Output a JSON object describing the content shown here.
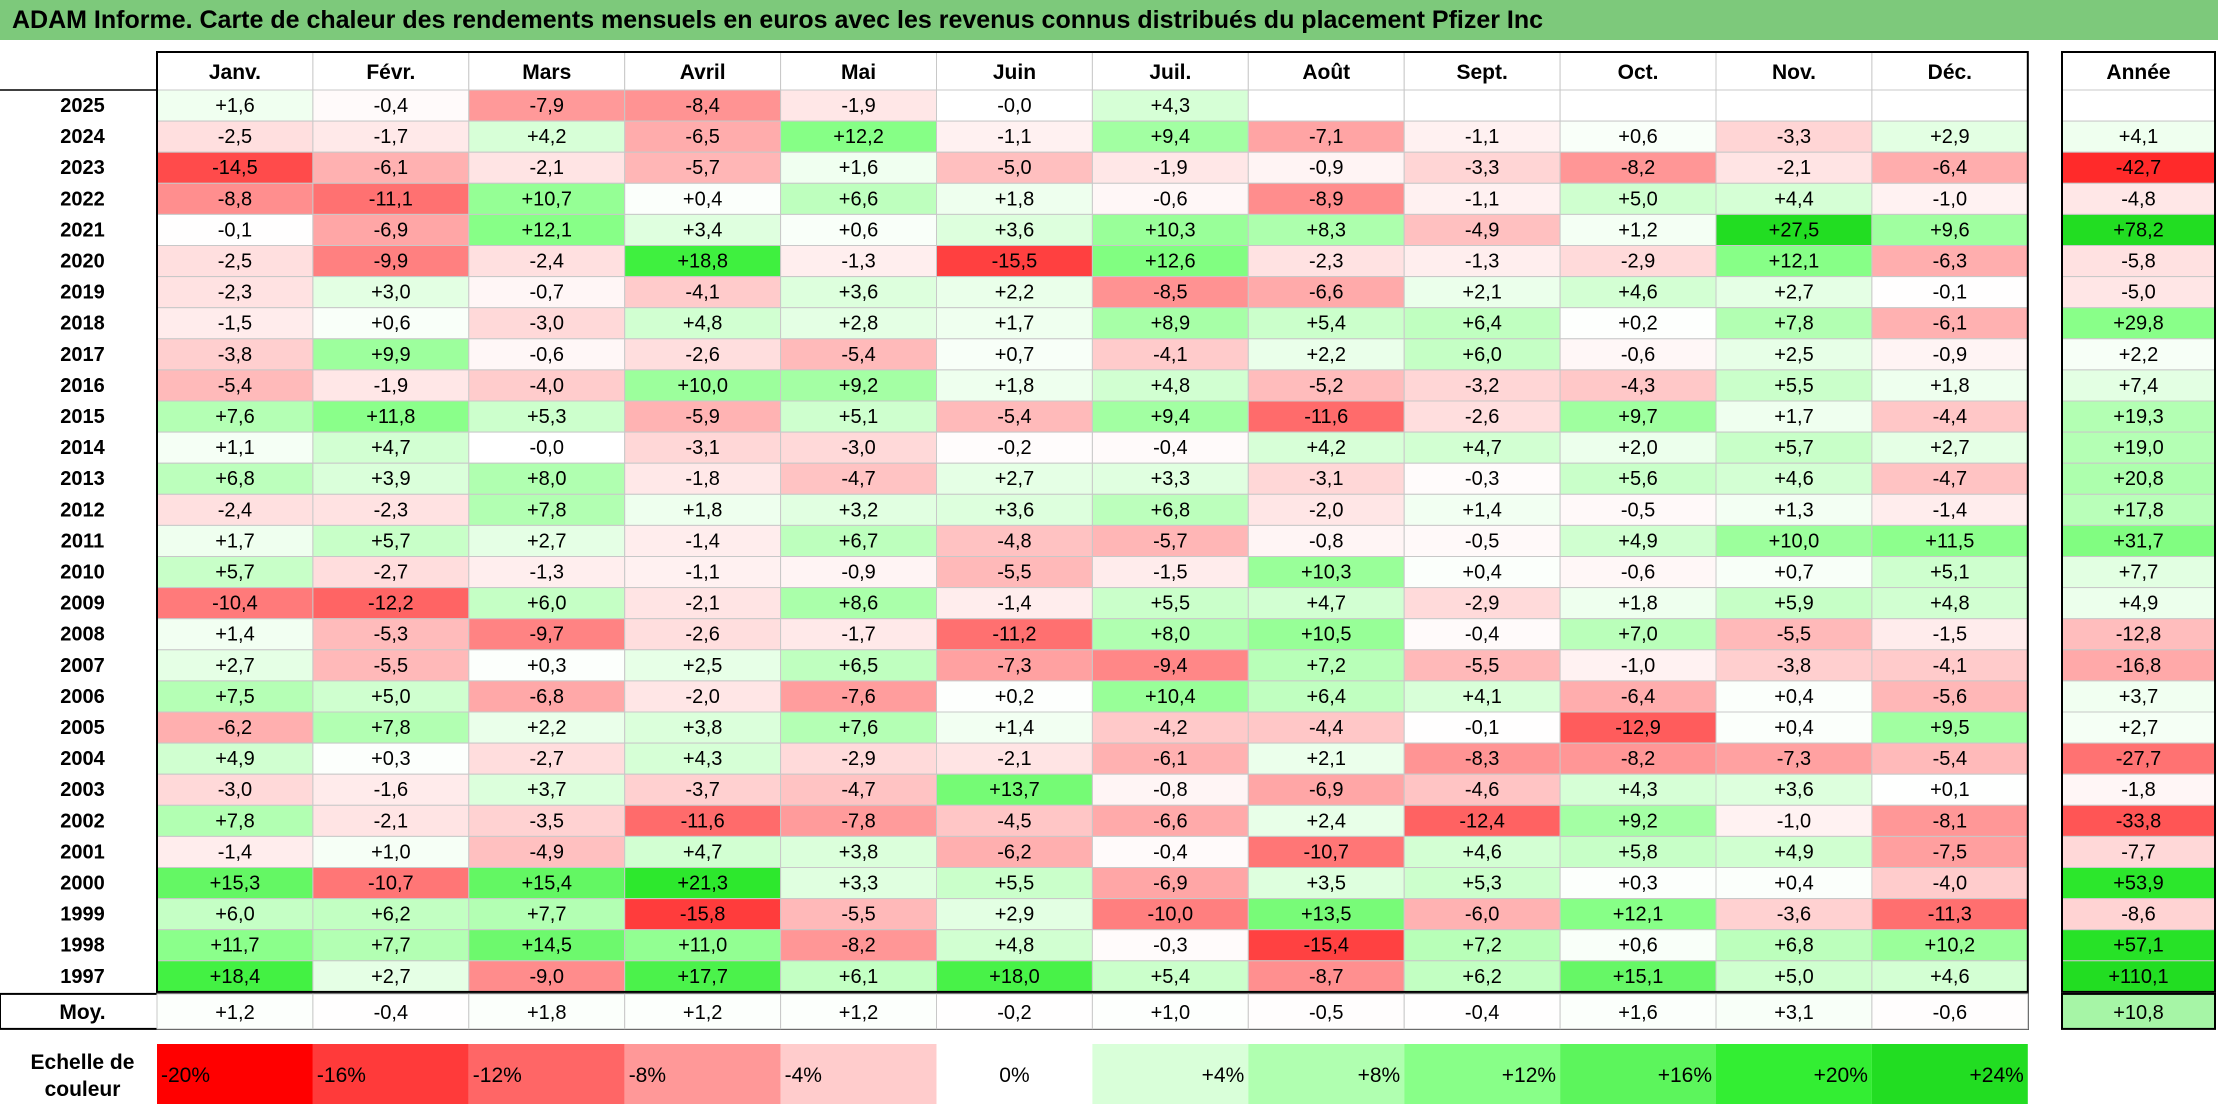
{
  "title": "ADAM Informe. Carte de chaleur des rendements mensuels en euros avec les revenus connus distribués du placement Pfizer Inc",
  "chart_data": {
    "type": "heatmap",
    "title": "ADAM Informe. Carte de chaleur des rendements mensuels en euros avec les revenus connus distribués du placement Pfizer Inc",
    "months": [
      "Janv.",
      "Févr.",
      "Mars",
      "Avril",
      "Mai",
      "Juin",
      "Juil.",
      "Août",
      "Sept.",
      "Oct.",
      "Nov.",
      "Déc."
    ],
    "year_header": "Année",
    "average_label": "Moy.",
    "rows": [
      {
        "year": "2025",
        "values": [
          1.6,
          -0.4,
          -7.9,
          -8.4,
          -1.9,
          -0.0,
          4.3,
          null,
          null,
          null,
          null,
          null
        ],
        "annual": null
      },
      {
        "year": "2024",
        "values": [
          -2.5,
          -1.7,
          4.2,
          -6.5,
          12.2,
          -1.1,
          9.4,
          -7.1,
          -1.1,
          0.6,
          -3.3,
          2.9
        ],
        "annual": 4.1
      },
      {
        "year": "2023",
        "values": [
          -14.5,
          -6.1,
          -2.1,
          -5.7,
          1.6,
          -5.0,
          -1.9,
          -0.9,
          -3.3,
          -8.2,
          -2.1,
          -6.4
        ],
        "annual": -42.7
      },
      {
        "year": "2022",
        "values": [
          -8.8,
          -11.1,
          10.7,
          0.4,
          6.6,
          1.8,
          -0.6,
          -8.9,
          -1.1,
          5.0,
          4.4,
          -1.0
        ],
        "annual": -4.8
      },
      {
        "year": "2021",
        "values": [
          -0.1,
          -6.9,
          12.1,
          3.4,
          0.6,
          3.6,
          10.3,
          8.3,
          -4.9,
          1.2,
          27.5,
          9.6
        ],
        "annual": 78.2
      },
      {
        "year": "2020",
        "values": [
          -2.5,
          -9.9,
          -2.4,
          18.8,
          -1.3,
          -15.5,
          12.6,
          -2.3,
          -1.3,
          -2.9,
          12.1,
          -6.3
        ],
        "annual": -5.8
      },
      {
        "year": "2019",
        "values": [
          -2.3,
          3.0,
          -0.7,
          -4.1,
          3.6,
          2.2,
          -8.5,
          -6.6,
          2.1,
          4.6,
          2.7,
          -0.1
        ],
        "annual": -5.0
      },
      {
        "year": "2018",
        "values": [
          -1.5,
          0.6,
          -3.0,
          4.8,
          2.8,
          1.7,
          8.9,
          5.4,
          6.4,
          0.2,
          7.8,
          -6.1
        ],
        "annual": 29.8
      },
      {
        "year": "2017",
        "values": [
          -3.8,
          9.9,
          -0.6,
          -2.6,
          -5.4,
          0.7,
          -4.1,
          2.2,
          6.0,
          -0.6,
          2.5,
          -0.9
        ],
        "annual": 2.2
      },
      {
        "year": "2016",
        "values": [
          -5.4,
          -1.9,
          -4.0,
          10.0,
          9.2,
          1.8,
          4.8,
          -5.2,
          -3.2,
          -4.3,
          5.5,
          1.8
        ],
        "annual": 7.4
      },
      {
        "year": "2015",
        "values": [
          7.6,
          11.8,
          5.3,
          -5.9,
          5.1,
          -5.4,
          9.4,
          -11.6,
          -2.6,
          9.7,
          1.7,
          -4.4
        ],
        "annual": 19.3
      },
      {
        "year": "2014",
        "values": [
          1.1,
          4.7,
          -0.0,
          -3.1,
          -3.0,
          -0.2,
          -0.4,
          4.2,
          4.7,
          2.0,
          5.7,
          2.7
        ],
        "annual": 19.0
      },
      {
        "year": "2013",
        "values": [
          6.8,
          3.9,
          8.0,
          -1.8,
          -4.7,
          2.7,
          3.3,
          -3.1,
          -0.3,
          5.6,
          4.6,
          -4.7
        ],
        "annual": 20.8
      },
      {
        "year": "2012",
        "values": [
          -2.4,
          -2.3,
          7.8,
          1.8,
          3.2,
          3.6,
          6.8,
          -2.0,
          1.4,
          -0.5,
          1.3,
          -1.4
        ],
        "annual": 17.8
      },
      {
        "year": "2011",
        "values": [
          1.7,
          5.7,
          2.7,
          -1.4,
          6.7,
          -4.8,
          -5.7,
          -0.8,
          -0.5,
          4.9,
          10.0,
          11.5
        ],
        "annual": 31.7
      },
      {
        "year": "2010",
        "values": [
          5.7,
          -2.7,
          -1.3,
          -1.1,
          -0.9,
          -5.5,
          -1.5,
          10.3,
          0.4,
          -0.6,
          0.7,
          5.1
        ],
        "annual": 7.7
      },
      {
        "year": "2009",
        "values": [
          -10.4,
          -12.2,
          6.0,
          -2.1,
          8.6,
          -1.4,
          5.5,
          4.7,
          -2.9,
          1.8,
          5.9,
          4.8
        ],
        "annual": 4.9
      },
      {
        "year": "2008",
        "values": [
          1.4,
          -5.3,
          -9.7,
          -2.6,
          -1.7,
          -11.2,
          8.0,
          10.5,
          -0.4,
          7.0,
          -5.5,
          -1.5
        ],
        "annual": -12.8
      },
      {
        "year": "2007",
        "values": [
          2.7,
          -5.5,
          0.3,
          2.5,
          6.5,
          -7.3,
          -9.4,
          7.2,
          -5.5,
          -1.0,
          -3.8,
          -4.1
        ],
        "annual": -16.8
      },
      {
        "year": "2006",
        "values": [
          7.5,
          5.0,
          -6.8,
          -2.0,
          -7.6,
          0.2,
          10.4,
          6.4,
          4.1,
          -6.4,
          0.4,
          -5.6
        ],
        "annual": 3.7
      },
      {
        "year": "2005",
        "values": [
          -6.2,
          7.8,
          2.2,
          3.8,
          7.6,
          1.4,
          -4.2,
          -4.4,
          -0.1,
          -12.9,
          0.4,
          9.5
        ],
        "annual": 2.7
      },
      {
        "year": "2004",
        "values": [
          4.9,
          0.3,
          -2.7,
          4.3,
          -2.9,
          -2.1,
          -6.1,
          2.1,
          -8.3,
          -8.2,
          -7.3,
          -5.4
        ],
        "annual": -27.7
      },
      {
        "year": "2003",
        "values": [
          -3.0,
          -1.6,
          3.7,
          -3.7,
          -4.7,
          13.7,
          -0.8,
          -6.9,
          -4.6,
          4.3,
          3.6,
          0.1
        ],
        "annual": -1.8
      },
      {
        "year": "2002",
        "values": [
          7.8,
          -2.1,
          -3.5,
          -11.6,
          -7.8,
          -4.5,
          -6.6,
          2.4,
          -12.4,
          9.2,
          -1.0,
          -8.1
        ],
        "annual": -33.8
      },
      {
        "year": "2001",
        "values": [
          -1.4,
          1.0,
          -4.9,
          4.7,
          3.8,
          -6.2,
          -0.4,
          -10.7,
          4.6,
          5.8,
          4.9,
          -7.5
        ],
        "annual": -7.7
      },
      {
        "year": "2000",
        "values": [
          15.3,
          -10.7,
          15.4,
          21.3,
          3.3,
          5.5,
          -6.9,
          3.5,
          5.3,
          0.3,
          0.4,
          -4.0
        ],
        "annual": 53.9
      },
      {
        "year": "1999",
        "values": [
          6.0,
          6.2,
          7.7,
          -15.8,
          -5.5,
          2.9,
          -10.0,
          13.5,
          -6.0,
          12.1,
          -3.6,
          -11.3
        ],
        "annual": -8.6
      },
      {
        "year": "1998",
        "values": [
          11.7,
          7.7,
          14.5,
          11.0,
          -8.2,
          4.8,
          -0.3,
          -15.4,
          7.2,
          0.6,
          6.8,
          10.2
        ],
        "annual": 57.1
      },
      {
        "year": "1997",
        "values": [
          18.4,
          2.7,
          -9.0,
          17.7,
          6.1,
          18.0,
          5.4,
          -8.7,
          6.2,
          15.1,
          5.0,
          4.6
        ],
        "annual": 110.1
      }
    ],
    "averages": {
      "values": [
        1.2,
        -0.4,
        1.8,
        1.2,
        1.2,
        -0.2,
        1.0,
        -0.5,
        -0.4,
        1.6,
        3.1,
        -0.6
      ],
      "annual": 10.8
    },
    "color_scale": {
      "label": "Echelle de couleur",
      "stops": [
        {
          "value": -20,
          "label": "-20%",
          "color": "#ff0000"
        },
        {
          "value": -16,
          "label": "-16%",
          "color": "#ff3a3a"
        },
        {
          "value": -12,
          "label": "-12%",
          "color": "#ff6666"
        },
        {
          "value": -8,
          "label": "-8%",
          "color": "#ff9898"
        },
        {
          "value": -4,
          "label": "-4%",
          "color": "#ffcccc"
        },
        {
          "value": 0,
          "label": "0%",
          "color": "#ffffff"
        },
        {
          "value": 4,
          "label": "+4%",
          "color": "#d9ffd9"
        },
        {
          "value": 8,
          "label": "+8%",
          "color": "#b0ffb0"
        },
        {
          "value": 12,
          "label": "+12%",
          "color": "#88ff88"
        },
        {
          "value": 16,
          "label": "+16%",
          "color": "#5cf55c"
        },
        {
          "value": 20,
          "label": "+20%",
          "color": "#33ee33"
        },
        {
          "value": 24,
          "label": "+24%",
          "color": "#22dd22"
        }
      ]
    }
  }
}
